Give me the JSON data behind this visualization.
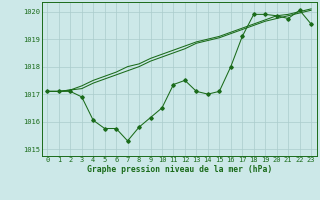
{
  "background_color": "#cce8e8",
  "grid_color": "#aacccc",
  "line_color": "#1a6b1a",
  "spine_color": "#1a6b1a",
  "title": "Graphe pression niveau de la mer (hPa)",
  "xlim": [
    -0.5,
    23.5
  ],
  "ylim": [
    1014.75,
    1020.35
  ],
  "yticks": [
    1015,
    1016,
    1017,
    1018,
    1019,
    1020
  ],
  "xticks": [
    0,
    1,
    2,
    3,
    4,
    5,
    6,
    7,
    8,
    9,
    10,
    11,
    12,
    13,
    14,
    15,
    16,
    17,
    18,
    19,
    20,
    21,
    22,
    23
  ],
  "series1_x": [
    0,
    1,
    2,
    3,
    4,
    5,
    6,
    7,
    8,
    9,
    10,
    11,
    12,
    13,
    14,
    15,
    16,
    17,
    18,
    19,
    20,
    21,
    22,
    23
  ],
  "series1_y": [
    1017.1,
    1017.1,
    1017.1,
    1016.9,
    1016.05,
    1015.75,
    1015.75,
    1015.3,
    1015.8,
    1016.15,
    1016.5,
    1017.35,
    1017.5,
    1017.1,
    1017.0,
    1017.1,
    1018.0,
    1019.1,
    1019.9,
    1019.9,
    1019.85,
    1019.75,
    1020.05,
    1019.55
  ],
  "series2_x": [
    0,
    1,
    2,
    3,
    4,
    5,
    6,
    7,
    8,
    9,
    10,
    11,
    12,
    13,
    14,
    15,
    16,
    17,
    18,
    19,
    20,
    21,
    22,
    23
  ],
  "series2_y": [
    1017.1,
    1017.1,
    1017.15,
    1017.2,
    1017.4,
    1017.55,
    1017.7,
    1017.85,
    1018.0,
    1018.2,
    1018.35,
    1018.5,
    1018.65,
    1018.85,
    1018.95,
    1019.05,
    1019.2,
    1019.35,
    1019.5,
    1019.65,
    1019.75,
    1019.85,
    1019.95,
    1020.05
  ],
  "series3_x": [
    0,
    1,
    2,
    3,
    4,
    5,
    6,
    7,
    8,
    9,
    10,
    11,
    12,
    13,
    14,
    15,
    16,
    17,
    18,
    19,
    20,
    21,
    22,
    23
  ],
  "series3_y": [
    1017.1,
    1017.1,
    1017.15,
    1017.3,
    1017.5,
    1017.65,
    1017.8,
    1018.0,
    1018.1,
    1018.3,
    1018.45,
    1018.6,
    1018.75,
    1018.9,
    1019.0,
    1019.1,
    1019.25,
    1019.4,
    1019.55,
    1019.7,
    1019.85,
    1019.9,
    1020.0,
    1020.1
  ],
  "title_fontsize": 5.8,
  "tick_fontsize": 5.0,
  "lw": 0.75,
  "ms": 1.8
}
